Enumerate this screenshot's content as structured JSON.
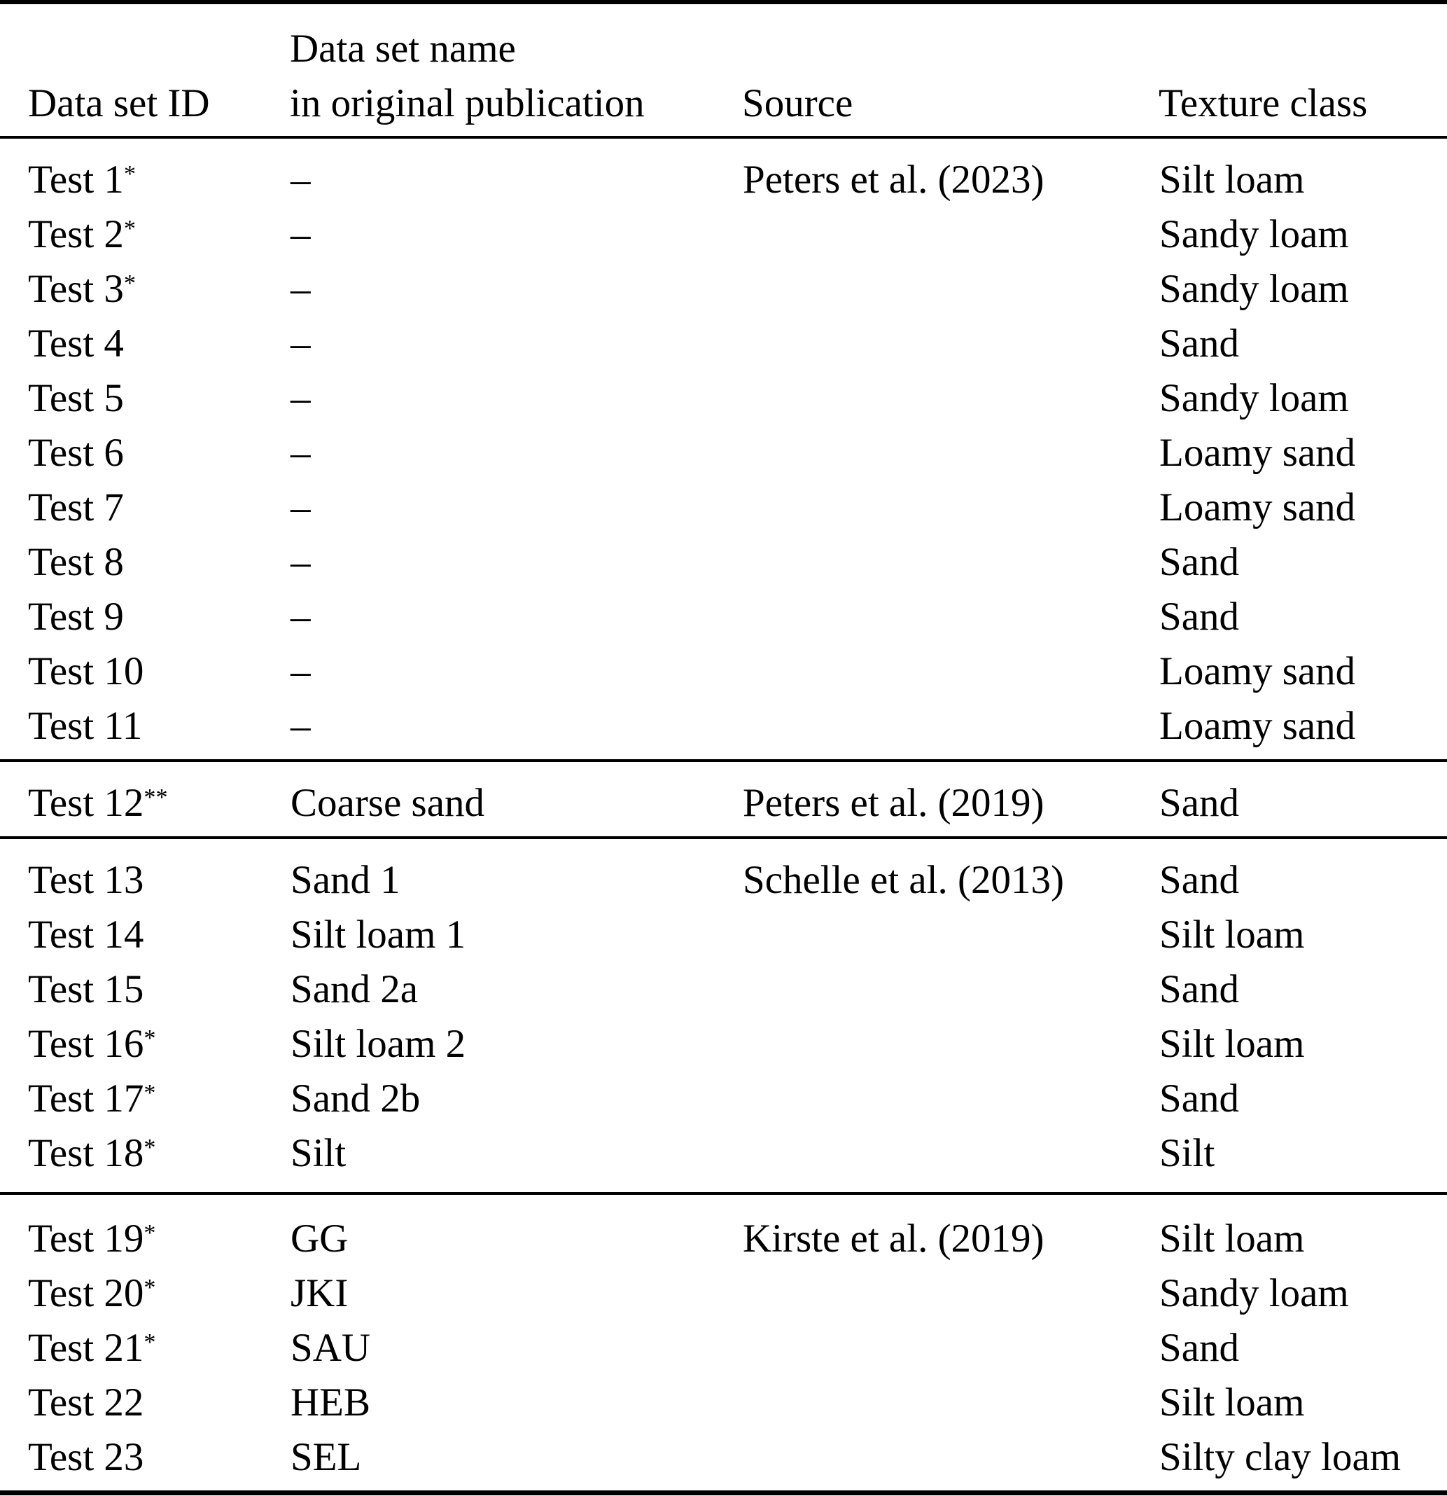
{
  "header": {
    "col1": "Data set ID",
    "col2_line1": "Data set name",
    "col2_line2": "in original publication",
    "col3": "Source",
    "col4": "Texture class"
  },
  "sections": [
    {
      "rows": [
        {
          "id": "Test 1",
          "sup": "*",
          "name": "–",
          "source": "Peters et al. (2023)",
          "texture": "Silt loam"
        },
        {
          "id": "Test 2",
          "sup": "*",
          "name": "–",
          "source": "",
          "texture": "Sandy loam"
        },
        {
          "id": "Test 3",
          "sup": "*",
          "name": "–",
          "source": "",
          "texture": "Sandy loam"
        },
        {
          "id": "Test 4",
          "sup": "",
          "name": "–",
          "source": "",
          "texture": "Sand"
        },
        {
          "id": "Test 5",
          "sup": "",
          "name": "–",
          "source": "",
          "texture": "Sandy loam"
        },
        {
          "id": "Test 6",
          "sup": "",
          "name": "–",
          "source": "",
          "texture": "Loamy sand"
        },
        {
          "id": "Test 7",
          "sup": "",
          "name": "–",
          "source": "",
          "texture": "Loamy sand"
        },
        {
          "id": "Test 8",
          "sup": "",
          "name": "–",
          "source": "",
          "texture": "Sand"
        },
        {
          "id": "Test 9",
          "sup": "",
          "name": "–",
          "source": "",
          "texture": "Sand"
        },
        {
          "id": "Test 10",
          "sup": "",
          "name": "–",
          "source": "",
          "texture": "Loamy sand"
        },
        {
          "id": "Test 11",
          "sup": "",
          "name": "–",
          "source": "",
          "texture": "Loamy sand"
        }
      ]
    },
    {
      "rows": [
        {
          "id": "Test 12",
          "sup": "**",
          "name": "Coarse sand",
          "source": "Peters et al. (2019)",
          "texture": "Sand"
        }
      ]
    },
    {
      "rows": [
        {
          "id": "Test 13",
          "sup": "",
          "name": "Sand 1",
          "source": "Schelle et al. (2013)",
          "texture": "Sand"
        },
        {
          "id": "Test 14",
          "sup": "",
          "name": "Silt loam 1",
          "source": "",
          "texture": "Silt loam"
        },
        {
          "id": "Test 15",
          "sup": "",
          "name": "Sand 2a",
          "source": "",
          "texture": "Sand"
        },
        {
          "id": "Test 16",
          "sup": "*",
          "name": "Silt loam 2",
          "source": "",
          "texture": "Silt loam"
        },
        {
          "id": "Test 17",
          "sup": "*",
          "name": "Sand 2b",
          "source": "",
          "texture": "Sand"
        },
        {
          "id": "Test 18",
          "sup": "*",
          "name": "Silt",
          "source": "",
          "texture": "Silt"
        }
      ]
    },
    {
      "rows": [
        {
          "id": "Test 19",
          "sup": "*",
          "name": "GG",
          "source": "Kirste et al. (2019)",
          "texture": "Silt loam"
        },
        {
          "id": "Test 20",
          "sup": "*",
          "name": "JKI",
          "source": "",
          "texture": "Sandy loam"
        },
        {
          "id": "Test 21",
          "sup": "*",
          "name": "SAU",
          "source": "",
          "texture": "Sand"
        },
        {
          "id": "Test 22",
          "sup": "",
          "name": "HEB",
          "source": "",
          "texture": "Silt loam"
        },
        {
          "id": "Test 23",
          "sup": "",
          "name": "SEL",
          "source": "",
          "texture": "Silty clay loam"
        }
      ]
    }
  ],
  "colors": {
    "text": "#000000",
    "background": "#ffffff",
    "rule": "#000000"
  }
}
